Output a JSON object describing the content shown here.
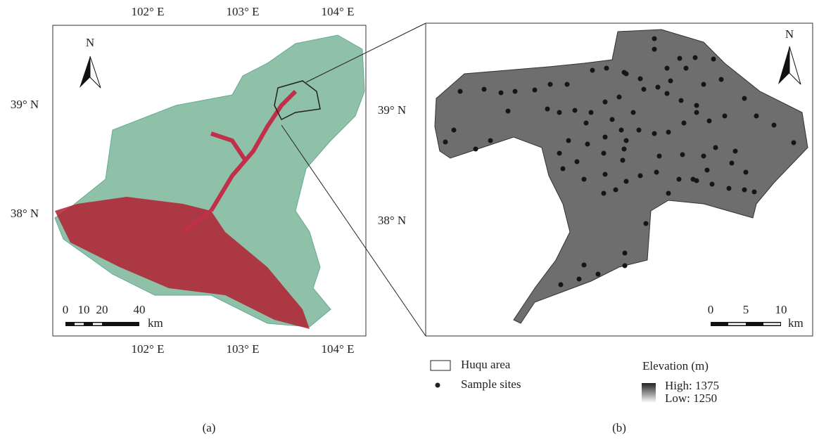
{
  "panel_a": {
    "north": "N",
    "top_labels": [
      "102° E",
      "103° E",
      "104° E"
    ],
    "bottom_labels": [
      "102° E",
      "103° E",
      "104° E"
    ],
    "left_labels": [
      "39° N",
      "38° N"
    ],
    "right_labels": [
      "39° N",
      "38° N"
    ],
    "scale_labels": [
      "0",
      "10",
      "20",
      "40"
    ],
    "scale_unit": "km",
    "caption": "(a)"
  },
  "panel_b": {
    "north": "N",
    "scale_labels": [
      "0",
      "5",
      "10"
    ],
    "scale_unit": "km",
    "caption": "(b)"
  },
  "legend": {
    "area": "Huqu area",
    "sites": "Sample sites",
    "elevation_title": "Elevation (m)",
    "high": "High: 1375",
    "low": "Low: 1250"
  }
}
